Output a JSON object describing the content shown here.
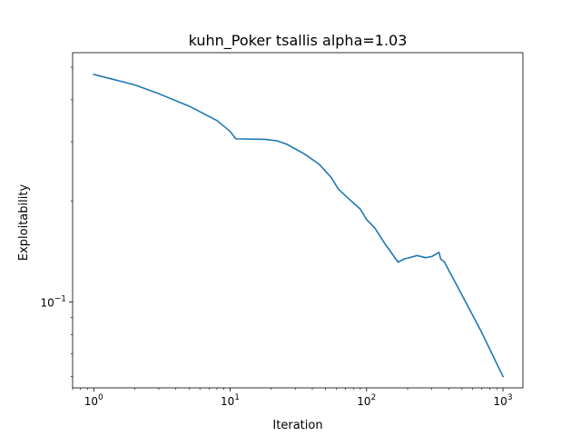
{
  "chart_data": {
    "type": "line",
    "title": "kuhn_Poker  tsallis  alpha=1.03",
    "xlabel": "Iteration",
    "ylabel": "Exploitability",
    "xscale": "log",
    "yscale": "log",
    "xlim": [
      0.7,
      1400
    ],
    "ylim": [
      0.0555,
      0.5525
    ],
    "grid": false,
    "color": "#1f77b4",
    "x_ticks": [
      {
        "value": 1,
        "base": "10",
        "exp": "0"
      },
      {
        "value": 10,
        "base": "10",
        "exp": "1"
      },
      {
        "value": 100,
        "base": "10",
        "exp": "2"
      },
      {
        "value": 1000,
        "base": "10",
        "exp": "3"
      }
    ],
    "y_ticks": [
      {
        "value": 0.1,
        "base": "10",
        "exp": "−1"
      }
    ],
    "series": [
      {
        "x": [
          1,
          2,
          3,
          5,
          8,
          10,
          11,
          18,
          22,
          26,
          35,
          45,
          55,
          62,
          72,
          85,
          90,
          100,
          115,
          135,
          170,
          190,
          200,
          235,
          270,
          300,
          340,
          350,
          370,
          500,
          700,
          1000
        ],
        "y": [
          0.476,
          0.443,
          0.417,
          0.383,
          0.347,
          0.322,
          0.306,
          0.305,
          0.302,
          0.295,
          0.276,
          0.257,
          0.235,
          0.217,
          0.205,
          0.193,
          0.189,
          0.176,
          0.166,
          0.15,
          0.1315,
          0.1345,
          0.135,
          0.1375,
          0.1355,
          0.1365,
          0.1405,
          0.134,
          0.132,
          0.105,
          0.081,
          0.06
        ]
      }
    ]
  }
}
